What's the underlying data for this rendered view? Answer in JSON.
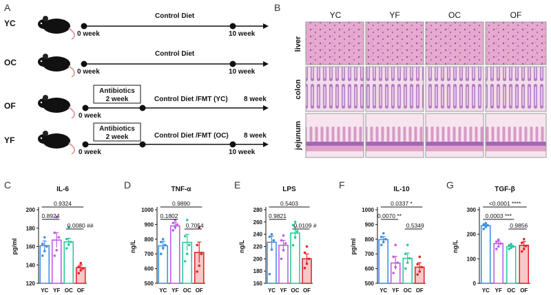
{
  "panelA": {
    "letter": "A",
    "rows": [
      {
        "group": "YC",
        "diet": "Control Diet",
        "antibiotics": "",
        "start": "0 week",
        "end": "10 week",
        "extra": ""
      },
      {
        "group": "OC",
        "diet": "Control Diet",
        "antibiotics": "",
        "start": "0 week",
        "end": "10 week",
        "extra": ""
      },
      {
        "group": "OF",
        "diet": "Control Diet /FMT  (YC)",
        "antibiotics": "Antibiotics\n2 week",
        "start": "0 week",
        "end": "",
        "extra": "8 week"
      },
      {
        "group": "YF",
        "diet": "Control Diet /FMT  (OC)",
        "antibiotics": "Antibiotics\n2 week",
        "start": "0 week",
        "end": "10 week",
        "extra": "8 week"
      }
    ],
    "abx_line1": "Antibiotics",
    "abx_line2": "2 week"
  },
  "panelB": {
    "letter": "B",
    "columns": [
      "YC",
      "YF",
      "OC",
      "OF"
    ],
    "rows": [
      "liver",
      "colon",
      "jejunum"
    ]
  },
  "colors": {
    "YC": "#3f8fe0",
    "YF": "#c05ae8",
    "OC": "#2bc99b",
    "OF": "#e8232a"
  },
  "chart_data": [
    {
      "letter": "C",
      "type": "bar",
      "title": "IL-6",
      "ylabel": "pg/ml",
      "categories": [
        "YC",
        "YF",
        "OC",
        "OF"
      ],
      "values": [
        161,
        167,
        165,
        137
      ],
      "errors": [
        5,
        8,
        4,
        3
      ],
      "ylim": [
        120,
        200
      ],
      "yticks": [
        120,
        140,
        160,
        180,
        200
      ],
      "points": [
        [
          150,
          155,
          160,
          163,
          170
        ],
        [
          150,
          156,
          170,
          175,
          192
        ],
        [
          158,
          162,
          165,
          168,
          181
        ],
        [
          131,
          134,
          136,
          138,
          142
        ]
      ],
      "comparisons": [
        {
          "from": 0,
          "to": 3,
          "label": "0.9324",
          "level": 0
        },
        {
          "from": 0,
          "to": 1,
          "label": "0.8924",
          "level": 1
        },
        {
          "from": 2,
          "to": 3,
          "label": "0.0080",
          "level": 2,
          "mark": "##"
        }
      ]
    },
    {
      "letter": "D",
      "type": "bar",
      "title": "TNF-α",
      "ylabel": "ng/L",
      "categories": [
        "YC",
        "YF",
        "OC",
        "OF"
      ],
      "values": [
        755,
        890,
        778,
        710
      ],
      "errors": [
        30,
        25,
        55,
        70
      ],
      "ylim": [
        500,
        1000
      ],
      "yticks": [
        500,
        600,
        700,
        800,
        900,
        1000
      ],
      "points": [
        [
          700,
          740,
          760,
          780,
          800
        ],
        [
          860,
          880,
          900,
          910,
          930
        ],
        [
          650,
          700,
          760,
          820,
          930
        ],
        [
          580,
          620,
          700,
          760,
          880
        ]
      ],
      "comparisons": [
        {
          "from": 0,
          "to": 3,
          "label": "0.9890",
          "level": 0
        },
        {
          "from": 0,
          "to": 1,
          "label": "0.1802",
          "level": 1
        },
        {
          "from": 2,
          "to": 3,
          "label": "0.7054",
          "level": 2,
          "mark": ""
        }
      ]
    },
    {
      "letter": "E",
      "type": "bar",
      "title": "LPS",
      "ylabel": "ng/L",
      "categories": [
        "YC",
        "YF",
        "OC",
        "OF"
      ],
      "values": [
        227,
        222,
        242,
        200
      ],
      "errors": [
        10,
        8,
        10,
        8
      ],
      "ylim": [
        160,
        280
      ],
      "yticks": [
        160,
        180,
        200,
        220,
        240,
        260,
        280
      ],
      "points": [
        [
          175,
          215,
          230,
          236,
          240
        ],
        [
          200,
          214,
          225,
          230,
          238
        ],
        [
          222,
          235,
          245,
          255,
          260
        ],
        [
          185,
          192,
          200,
          210,
          220
        ]
      ],
      "comparisons": [
        {
          "from": 0,
          "to": 3,
          "label": "0.5403",
          "level": 0
        },
        {
          "from": 0,
          "to": 1,
          "label": "0.9821",
          "level": 1
        },
        {
          "from": 2,
          "to": 3,
          "label": "0.0109",
          "level": 2,
          "mark": "#"
        }
      ]
    },
    {
      "letter": "F",
      "type": "bar",
      "title": "IL-10",
      "ylabel": "pg/ml",
      "categories": [
        "YC",
        "YF",
        "OC",
        "OF"
      ],
      "values": [
        797,
        638,
        670,
        610
      ],
      "errors": [
        20,
        45,
        35,
        30
      ],
      "ylim": [
        500,
        1000
      ],
      "yticks": [
        500,
        600,
        700,
        800,
        900,
        1000
      ],
      "points": [
        [
          760,
          780,
          800,
          815,
          840
        ],
        [
          570,
          610,
          640,
          680,
          760
        ],
        [
          600,
          640,
          670,
          700,
          760
        ],
        [
          560,
          580,
          610,
          630,
          680
        ]
      ],
      "comparisons": [
        {
          "from": 0,
          "to": 3,
          "label": "0.0337",
          "level": 0,
          "mark": "*"
        },
        {
          "from": 0,
          "to": 1,
          "label": "0.0070",
          "level": 1,
          "mark": "**"
        },
        {
          "from": 2,
          "to": 3,
          "label": "0.5349",
          "level": 2,
          "mark": ""
        }
      ]
    },
    {
      "letter": "G",
      "type": "bar",
      "title": "TGF-β",
      "ylabel": "ng/L",
      "categories": [
        "YC",
        "YF",
        "OC",
        "OF"
      ],
      "values": [
        235,
        162,
        150,
        155
      ],
      "errors": [
        5,
        10,
        5,
        15
      ],
      "ylim": [
        0,
        300
      ],
      "yticks": [
        0,
        100,
        200,
        300
      ],
      "points": [
        [
          222,
          230,
          236,
          240,
          245
        ],
        [
          140,
          150,
          162,
          170,
          178
        ],
        [
          140,
          145,
          150,
          155,
          160
        ],
        [
          130,
          140,
          152,
          165,
          180
        ]
      ],
      "comparisons": [
        {
          "from": 0,
          "to": 3,
          "label": "<0.0001",
          "level": 0,
          "mark": "****"
        },
        {
          "from": 0,
          "to": 2,
          "label": "0.0003",
          "level": 1,
          "mark": "***"
        },
        {
          "from": 2,
          "to": 3,
          "label": "0.9856",
          "level": 2,
          "mark": ""
        }
      ]
    }
  ]
}
